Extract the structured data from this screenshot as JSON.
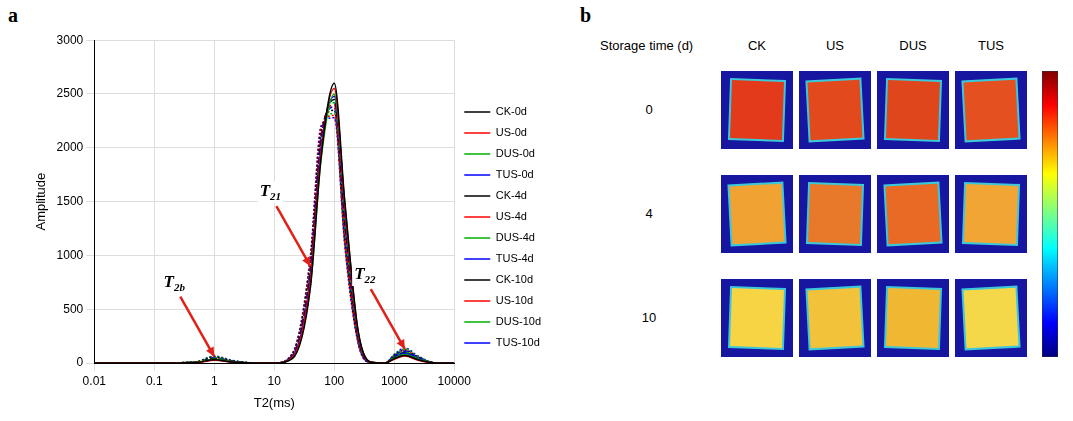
{
  "panel_labels": [
    "a",
    "b"
  ],
  "chart_data": {
    "type": "line",
    "x_label": "T2(ms)",
    "y_label": "Amplitude",
    "log": "x",
    "grid": true,
    "legend": "right",
    "xlim": [
      0.01,
      10000
    ],
    "xticks": [
      0.01,
      0.1,
      1,
      10,
      100,
      1000,
      10000
    ],
    "ylim": [
      0,
      3000
    ],
    "yticks": [
      0,
      500,
      1000,
      1500,
      2000,
      2500,
      3000
    ],
    "x": [
      0.01,
      0.1,
      0.5,
      1,
      2,
      5,
      10,
      20,
      40,
      60,
      100,
      150,
      250,
      400,
      700,
      1000,
      1500,
      2500,
      5000,
      10000
    ],
    "series": [
      {
        "name": "CK-0d",
        "color": "#000000",
        "line_style": "solid",
        "values": [
          0,
          0,
          5,
          30,
          10,
          0,
          0,
          40,
          700,
          1900,
          2600,
          1500,
          300,
          10,
          0,
          40,
          70,
          30,
          0,
          0
        ]
      },
      {
        "name": "US-0d",
        "color": "#ff0000",
        "line_style": "solid",
        "values": [
          0,
          0,
          5,
          25,
          8,
          0,
          0,
          50,
          760,
          1950,
          2550,
          1450,
          280,
          10,
          0,
          35,
          65,
          25,
          0,
          0
        ]
      },
      {
        "name": "DUS-0d",
        "color": "#00b000",
        "line_style": "solid",
        "values": [
          0,
          0,
          6,
          35,
          12,
          0,
          0,
          45,
          720,
          1880,
          2500,
          1480,
          290,
          10,
          0,
          45,
          80,
          35,
          0,
          0
        ]
      },
      {
        "name": "TUS-0d",
        "color": "#0000ff",
        "line_style": "solid",
        "values": [
          0,
          0,
          4,
          28,
          9,
          0,
          0,
          55,
          800,
          2000,
          2480,
          1400,
          260,
          8,
          0,
          50,
          90,
          40,
          0,
          0
        ]
      },
      {
        "name": "CK-4d",
        "color": "#000000",
        "line_style": "dashed",
        "values": [
          0,
          0,
          8,
          40,
          15,
          0,
          0,
          60,
          850,
          2050,
          2450,
          1300,
          240,
          8,
          0,
          55,
          95,
          40,
          0,
          0
        ]
      },
      {
        "name": "US-4d",
        "color": "#ff0000",
        "line_style": "dashed",
        "values": [
          0,
          0,
          7,
          35,
          12,
          0,
          0,
          65,
          880,
          2080,
          2400,
          1250,
          230,
          8,
          0,
          50,
          85,
          35,
          0,
          0
        ]
      },
      {
        "name": "DUS-4d",
        "color": "#00b000",
        "line_style": "dashed",
        "values": [
          0,
          0,
          9,
          45,
          15,
          0,
          0,
          60,
          860,
          2020,
          2420,
          1280,
          235,
          8,
          0,
          60,
          100,
          45,
          0,
          0
        ]
      },
      {
        "name": "TUS-4d",
        "color": "#0000ff",
        "line_style": "dashed",
        "values": [
          0,
          0,
          8,
          50,
          18,
          0,
          0,
          70,
          900,
          2100,
          2380,
          1220,
          220,
          6,
          0,
          65,
          110,
          50,
          0,
          0
        ]
      },
      {
        "name": "CK-10d",
        "color": "#000000",
        "line_style": "dotted",
        "values": [
          0,
          0,
          10,
          55,
          20,
          0,
          0,
          80,
          950,
          2150,
          2350,
          1150,
          200,
          6,
          0,
          70,
          120,
          55,
          0,
          0
        ]
      },
      {
        "name": "US-10d",
        "color": "#ff0000",
        "line_style": "dotted",
        "values": [
          0,
          0,
          10,
          50,
          18,
          0,
          0,
          85,
          980,
          2180,
          2300,
          1100,
          190,
          6,
          0,
          65,
          115,
          50,
          0,
          0
        ]
      },
      {
        "name": "DUS-10d",
        "color": "#00b000",
        "line_style": "dotted",
        "values": [
          0,
          0,
          12,
          60,
          22,
          0,
          0,
          80,
          960,
          2120,
          2320,
          1120,
          195,
          6,
          0,
          75,
          130,
          60,
          0,
          0
        ]
      },
      {
        "name": "TUS-10d",
        "color": "#0000ff",
        "line_style": "dotted",
        "values": [
          0,
          0,
          12,
          65,
          25,
          0,
          0,
          90,
          1000,
          2200,
          2280,
          1080,
          180,
          5,
          0,
          80,
          140,
          65,
          0,
          0
        ]
      }
    ],
    "annotations": [
      {
        "text": "T21",
        "x": 40,
        "y": 900
      },
      {
        "text": "T2b",
        "x": 1,
        "y": 60
      },
      {
        "text": "T22",
        "x": 1500,
        "y": 130
      }
    ]
  },
  "image_grid": {
    "row_header": "Storage time (d)",
    "columns": [
      "CK",
      "US",
      "DUS",
      "TUS"
    ],
    "rows": [
      "0",
      "4",
      "10"
    ],
    "colors": [
      [
        "#e23a1a",
        "#e24a1e",
        "#e0461c",
        "#e4501f"
      ],
      [
        "#f0a232",
        "#e8782a",
        "#e86a24",
        "#f0a534"
      ],
      [
        "#f6d444",
        "#f2c23a",
        "#f0b832",
        "#f5d84a"
      ]
    ]
  }
}
